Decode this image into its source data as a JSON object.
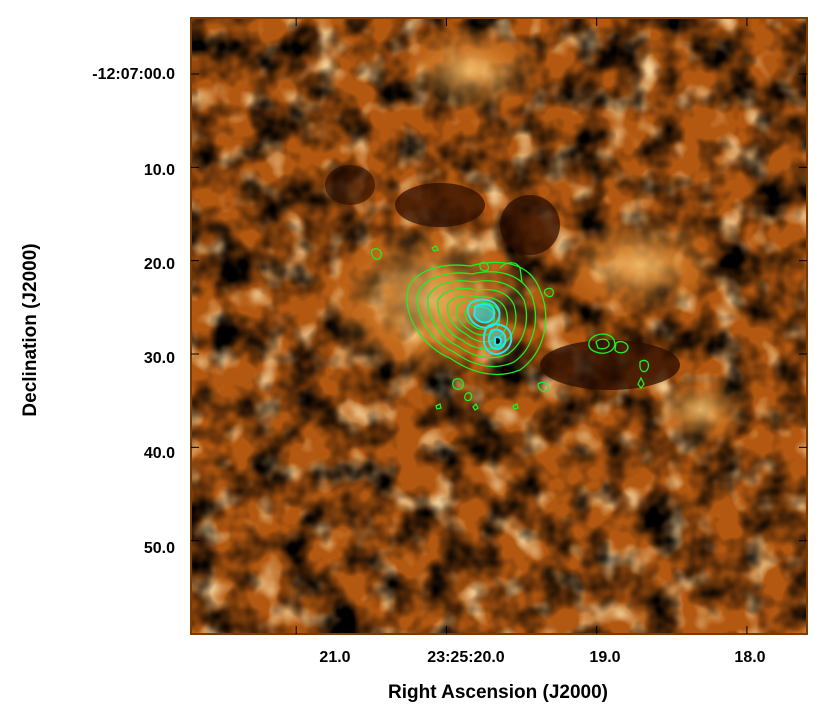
{
  "figure": {
    "xlabel": "Right Ascension (J2000)",
    "ylabel": "Declination (J2000)",
    "y_ticks": [
      {
        "value_arcsec": 0,
        "label": "-12:07:00.0"
      },
      {
        "value_arcsec": 10,
        "label": "10.0"
      },
      {
        "value_arcsec": 20,
        "label": "20.0"
      },
      {
        "value_arcsec": 30,
        "label": "30.0"
      },
      {
        "value_arcsec": 40,
        "label": "40.0"
      },
      {
        "value_arcsec": 50,
        "label": "50.0"
      }
    ],
    "x_ticks": [
      {
        "value_sec": 21.0,
        "label": "21.0"
      },
      {
        "value_sec": 20.0,
        "label": "23:25:20.0"
      },
      {
        "value_sec": 19.0,
        "label": "19.0"
      },
      {
        "value_sec": 18.0,
        "label": "18.0"
      }
    ],
    "x_range_sec": [
      21.7,
      17.6
    ],
    "y_range_arcsec": [
      -6,
      60
    ],
    "colors": {
      "frame": "#7a3a00",
      "background_dark": "#3a1200",
      "background_mid": "#b55a10",
      "background_bright": "#f0b45a",
      "contour_green": "#22ee22",
      "contour_cyan": "#22e6f0"
    }
  }
}
